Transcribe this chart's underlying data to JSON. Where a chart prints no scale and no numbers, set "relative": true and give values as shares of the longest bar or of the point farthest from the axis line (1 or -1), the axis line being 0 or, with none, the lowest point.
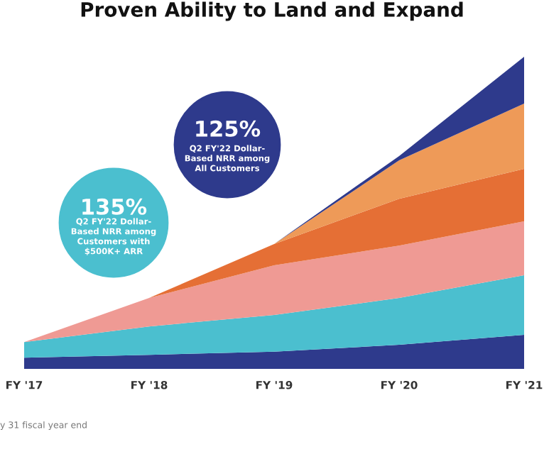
{
  "chart_data": {
    "type": "area",
    "title": "Proven Ability to Land and Expand",
    "categories": [
      "FY '17",
      "FY '18",
      "FY '19",
      "FY '20",
      "FY '21"
    ],
    "relative": true,
    "stacked": true,
    "legend": false,
    "grid": false,
    "tick_labels": "x",
    "series": [
      {
        "color": "#2e3a8c",
        "values": [
          0.036,
          0.045,
          0.055,
          0.077,
          0.109
        ]
      },
      {
        "color": "#4bbfcf",
        "values": [
          0.05,
          0.091,
          0.118,
          0.15,
          0.191
        ]
      },
      {
        "color": "#ef9a94",
        "values": [
          0,
          0.091,
          0.159,
          0.168,
          0.173
        ]
      },
      {
        "color": "#e56f35",
        "values": [
          0,
          0,
          0.068,
          0.15,
          0.168
        ]
      },
      {
        "color": "#ee9a58",
        "values": [
          0,
          0,
          0,
          0.123,
          0.209
        ]
      },
      {
        "color": "#2e3a8c",
        "values": [
          0,
          0,
          0,
          0.014,
          0.15
        ]
      }
    ],
    "annotations": [
      "125%",
      "Q2 FY'22 Dollar-\nBased NRR among\nAll Customers",
      "135%",
      "Q2 FY'22 Dollar-\nBased NRR among\nCustomers with\n$500K+ ARR",
      "y 31 fiscal year end"
    ]
  }
}
